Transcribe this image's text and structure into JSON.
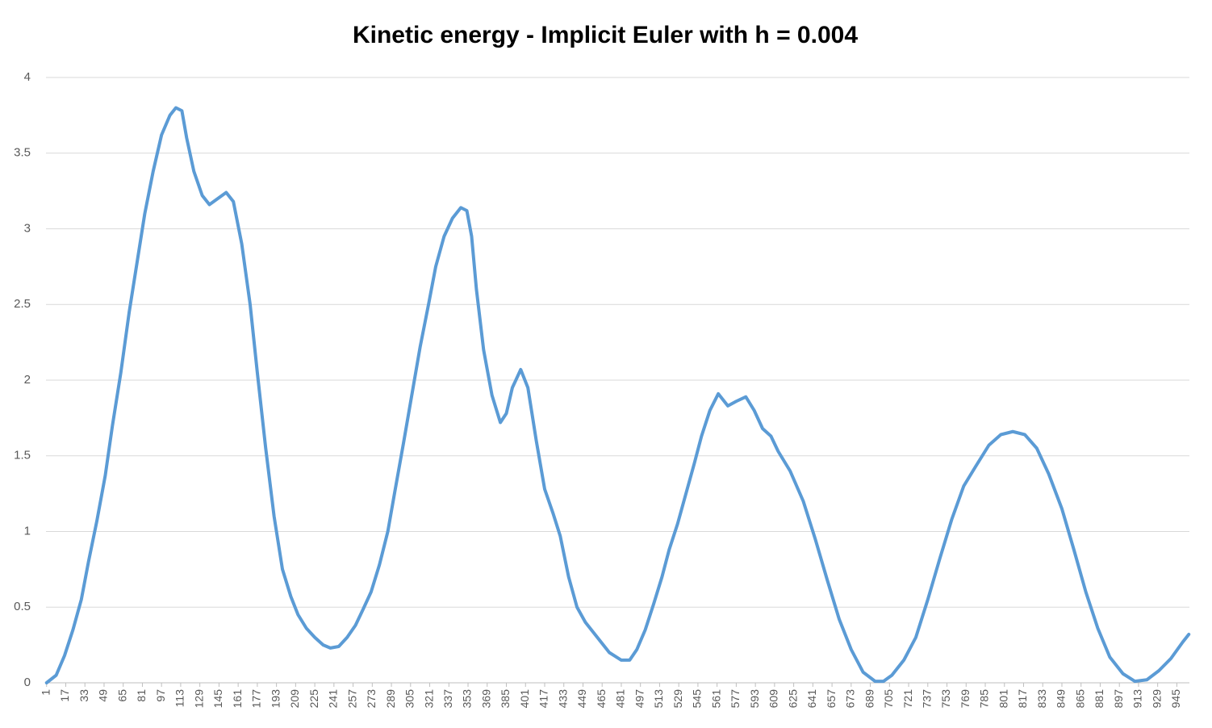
{
  "chart_data": {
    "type": "line",
    "title": "Kinetic energy  - Implicit Euler with h = 0.004",
    "x": [
      1,
      9,
      16,
      23,
      30,
      36,
      43,
      50,
      56,
      63,
      70,
      77,
      83,
      90,
      97,
      104,
      109,
      114,
      118,
      124,
      131,
      137,
      144,
      151,
      157,
      164,
      171,
      177,
      184,
      191,
      198,
      205,
      211,
      218,
      225,
      232,
      238,
      245,
      252,
      259,
      265,
      272,
      279,
      286,
      292,
      299,
      306,
      313,
      320,
      326,
      333,
      340,
      347,
      352,
      356,
      360,
      366,
      373,
      380,
      385,
      390,
      397,
      403,
      410,
      417,
      424,
      430,
      437,
      444,
      451,
      461,
      471,
      481,
      488,
      494,
      501,
      508,
      515,
      521,
      528,
      535,
      542,
      548,
      555,
      562,
      565,
      570,
      577,
      585,
      592,
      599,
      606,
      612,
      622,
      633,
      643,
      653,
      663,
      673,
      683,
      693,
      700,
      707,
      717,
      727,
      737,
      747,
      757,
      767,
      777,
      788,
      798,
      808,
      818,
      828,
      838,
      849,
      859,
      869,
      879,
      889,
      900,
      910,
      920,
      930,
      940,
      950,
      955
    ],
    "values": [
      0,
      0.05,
      0.18,
      0.35,
      0.55,
      0.8,
      1.07,
      1.37,
      1.7,
      2.05,
      2.45,
      2.8,
      3.1,
      3.38,
      3.62,
      3.75,
      3.8,
      3.78,
      3.6,
      3.38,
      3.22,
      3.16,
      3.2,
      3.24,
      3.18,
      2.9,
      2.5,
      2.05,
      1.55,
      1.1,
      0.75,
      0.57,
      0.45,
      0.36,
      0.3,
      0.25,
      0.23,
      0.24,
      0.3,
      0.38,
      0.48,
      0.6,
      0.78,
      1.0,
      1.27,
      1.58,
      1.9,
      2.22,
      2.5,
      2.75,
      2.95,
      3.07,
      3.14,
      3.12,
      2.95,
      2.6,
      2.2,
      1.9,
      1.72,
      1.78,
      1.95,
      2.07,
      1.95,
      1.6,
      1.28,
      1.12,
      0.97,
      0.7,
      0.5,
      0.4,
      0.3,
      0.2,
      0.15,
      0.15,
      0.22,
      0.35,
      0.52,
      0.7,
      0.88,
      1.05,
      1.25,
      1.45,
      1.63,
      1.8,
      1.91,
      1.88,
      1.83,
      1.86,
      1.89,
      1.8,
      1.68,
      1.63,
      1.53,
      1.4,
      1.2,
      0.95,
      0.68,
      0.42,
      0.22,
      0.07,
      0.01,
      0.01,
      0.05,
      0.15,
      0.3,
      0.55,
      0.82,
      1.08,
      1.3,
      1.43,
      1.57,
      1.64,
      1.66,
      1.64,
      1.55,
      1.38,
      1.15,
      0.88,
      0.6,
      0.36,
      0.17,
      0.06,
      0.01,
      0.02,
      0.08,
      0.16,
      0.27,
      0.32
    ],
    "color": "#5b9bd5",
    "xlim": [
      0.5,
      955.5
    ],
    "xticks": [
      1,
      17,
      33,
      49,
      65,
      81,
      97,
      113,
      129,
      145,
      161,
      177,
      193,
      209,
      225,
      241,
      257,
      273,
      289,
      305,
      321,
      337,
      353,
      369,
      385,
      401,
      417,
      433,
      449,
      465,
      481,
      497,
      513,
      529,
      545,
      561,
      577,
      593,
      609,
      625,
      641,
      657,
      673,
      689,
      705,
      721,
      737,
      753,
      769,
      785,
      801,
      817,
      833,
      849,
      865,
      881,
      897,
      913,
      929,
      945
    ],
    "ylim": [
      0,
      4
    ],
    "yticks": [
      0,
      0.5,
      1,
      1.5,
      2,
      2.5,
      3,
      3.5,
      4
    ],
    "grid": true
  }
}
